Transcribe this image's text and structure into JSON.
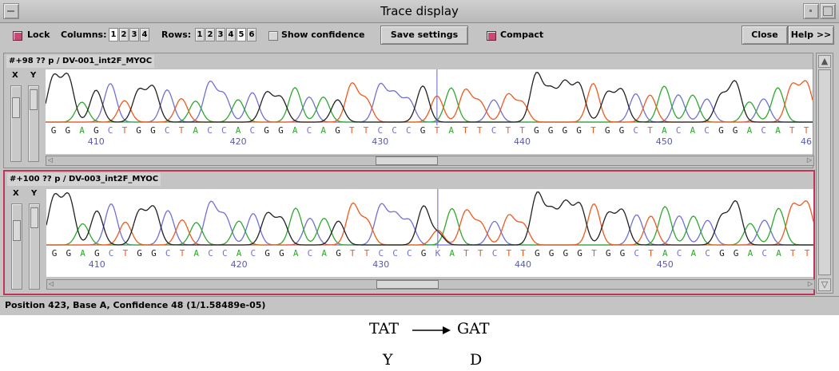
{
  "window": {
    "title": "Trace display"
  },
  "toolbar": {
    "lock_label": "Lock",
    "columns_label": "Columns:",
    "columns": [
      "1",
      "2",
      "3",
      "4"
    ],
    "columns_selected": "1",
    "rows_label": "Rows:",
    "rows": [
      "1",
      "2",
      "3",
      "4",
      "5",
      "6"
    ],
    "rows_selected": "5",
    "show_confidence_label": "Show confidence",
    "save_settings_label": "Save settings",
    "compact_label": "Compact",
    "close_label": "Close",
    "help_label": "Help >>",
    "lock_checked": true,
    "show_confidence_checked": false,
    "compact_checked": true
  },
  "panels": [
    {
      "title": "#+98 ?? p / DV-001_int2F_MYOC",
      "x_label": "X",
      "y_label": "Y",
      "bases": "GGAGCTGGCTACCACGGACAGTTCCCGTATTCTTGGGGTGGCTACACGGACATT",
      "positions": [
        "410",
        "420",
        "430",
        "440",
        "450",
        "46"
      ]
    },
    {
      "title": "#+100 ?? p / DV-003_int2F_MYOC",
      "x_label": "X",
      "y_label": "Y",
      "bases": "GGAGCTGGCTACCACGGACAGTTCCCGKATTCTTGGGGTGGCTACACGGACATT",
      "positions": [
        "410",
        "420",
        "430",
        "440",
        "450"
      ]
    }
  ],
  "status": {
    "text": "Position  423, Base A, Confidence  48 (1/1.58489e-05)"
  },
  "annotation": {
    "from_codon": "TAT",
    "to_codon": "GAT",
    "from_aa": "Y",
    "to_aa": "D"
  },
  "colors": {
    "A": "#2fa82f",
    "C": "#7070d6",
    "G": "#222222",
    "T": "#ee5a1e",
    "K": "#7070d6",
    "active_border": "#c2335a",
    "cursor": "#6464c8",
    "position_text": "#5a5aa8"
  }
}
